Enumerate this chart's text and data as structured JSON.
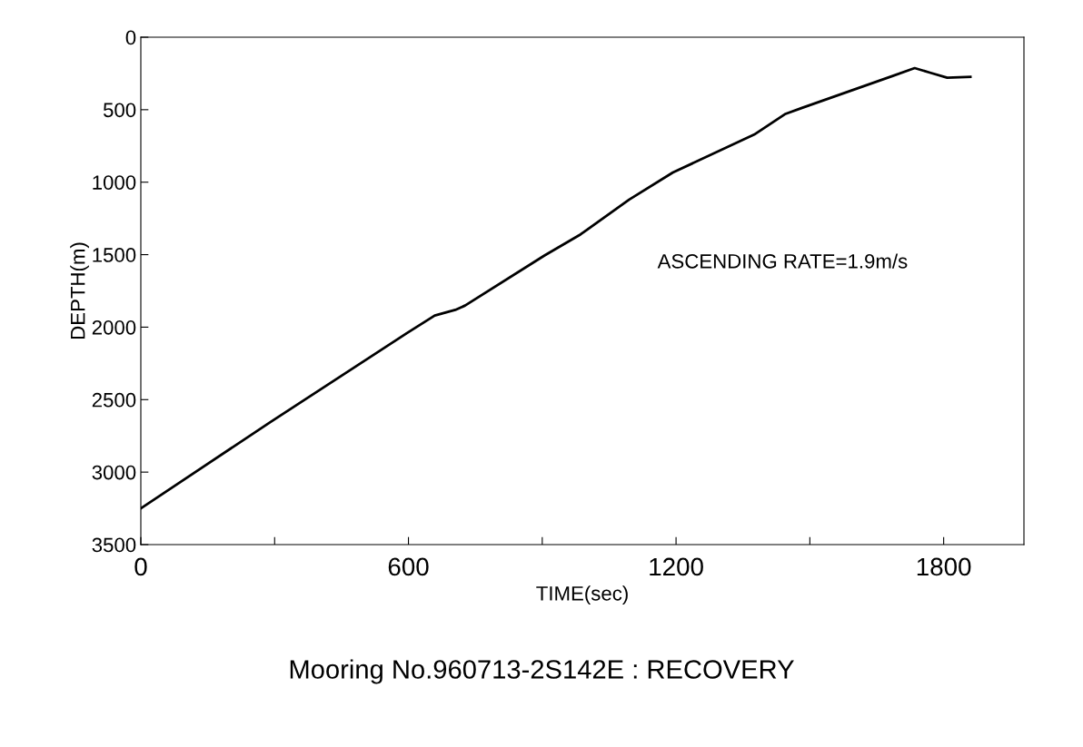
{
  "chart_data": {
    "type": "line",
    "title": "Mooring No.960713-2S142E : RECOVERY",
    "xlabel": "TIME(sec)",
    "ylabel": "DEPTH(m)",
    "annotations": [
      "ASCENDING RATE=1.9m/s"
    ],
    "x": [
      0,
      291,
      597,
      659,
      705,
      727,
      905,
      986,
      1095,
      1193,
      1375,
      1444,
      1481,
      1686,
      1735,
      1769,
      1808,
      1860
    ],
    "series": [
      {
        "color": "#000000",
        "values": [
          3250,
          2654,
          2040,
          1920,
          1881,
          1851,
          1506,
          1360,
          1120,
          933,
          672,
          531,
          489,
          267,
          213,
          244,
          279,
          274
        ]
      }
    ],
    "xlim": [
      0,
      1980
    ],
    "xticks": [
      0,
      {
        "value": 300,
        "label": null
      },
      600,
      {
        "value": 900,
        "label": null
      },
      1200,
      {
        "value": 1500,
        "label": null
      },
      1800
    ],
    "ylim": [
      3500,
      0
    ],
    "yticks": [
      0,
      500,
      1000,
      1500,
      2000,
      2500,
      3000,
      3500
    ],
    "grid": false,
    "legend": false,
    "marker": "none",
    "line_style": "solid"
  }
}
